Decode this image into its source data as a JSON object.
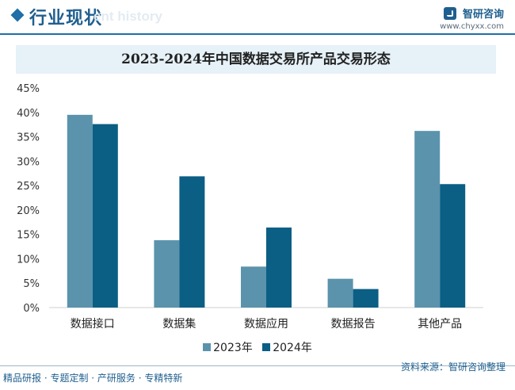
{
  "header": {
    "section_title": "行业现状",
    "ghost_text": "ent history",
    "brand_name": "智研咨询",
    "brand_url": "www.chyxx.com"
  },
  "footer": {
    "left": "精品研报 · 专题定制 · 产研服务 · 专精特新",
    "right": "资料来源：智研咨询整理"
  },
  "colors": {
    "series_2023": "#5b93ac",
    "series_2024": "#0b5e84",
    "accent": "#1f6fa8"
  },
  "chart_data": {
    "type": "bar",
    "title": "2023-2024年中国数据交易所产品交易形态",
    "categories": [
      "数据接口",
      "数据集",
      "数据应用",
      "数据报告",
      "其他产品"
    ],
    "series": [
      {
        "name": "2023年",
        "values": [
          39.5,
          13.8,
          8.4,
          5.9,
          36.2
        ]
      },
      {
        "name": "2024年",
        "values": [
          37.6,
          26.9,
          16.4,
          3.8,
          25.3
        ]
      }
    ],
    "ylim": [
      0,
      45
    ],
    "yticks": [
      "0%",
      "5%",
      "10%",
      "15%",
      "20%",
      "25%",
      "30%",
      "35%",
      "40%",
      "45%"
    ],
    "grid": false,
    "legend_position": "bottom"
  }
}
